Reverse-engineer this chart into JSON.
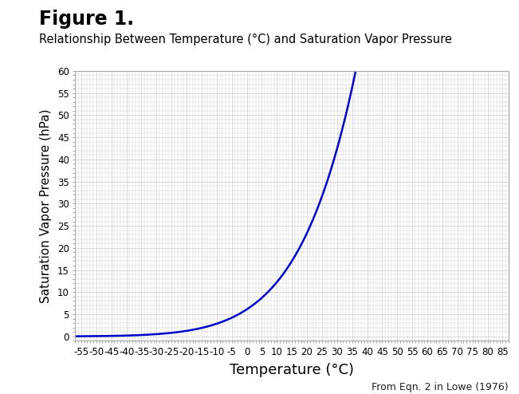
{
  "title": "Figure 1.",
  "subtitle": "Relationship Between Temperature (°C) and Saturation Vapor Pressure",
  "xlabel": "Temperature (°C)",
  "ylabel": "Saturation Vapor Pressure (hPa)",
  "footnote": "From Eqn. 2 in Lowe (1976)",
  "x_min": -57,
  "x_max": 87,
  "y_min": -1,
  "y_max": 60,
  "x_ticks": [
    -55,
    -50,
    -45,
    -40,
    -35,
    -30,
    -25,
    -20,
    -15,
    -10,
    -5,
    0,
    5,
    10,
    15,
    20,
    25,
    30,
    35,
    40,
    45,
    50,
    55,
    60,
    65,
    70,
    75,
    80,
    85
  ],
  "y_ticks": [
    0,
    5,
    10,
    15,
    20,
    25,
    30,
    35,
    40,
    45,
    50,
    55,
    60
  ],
  "line_color": "#0000CC",
  "line_width": 1.8,
  "grid_color": "#CCCCCC",
  "grid_minor_color": "#DDDDDD",
  "background_color": "#FFFFFF",
  "title_fontsize": 17,
  "subtitle_fontsize": 10.5,
  "xlabel_fontsize": 13,
  "ylabel_fontsize": 11,
  "tick_fontsize": 8.5,
  "footnote_fontsize": 9,
  "lowe_a0": 6.107799961,
  "lowe_a1": 0.4436518521,
  "lowe_a2": 0.01428945805,
  "lowe_a3": 0.0002650648471,
  "lowe_a4": 3.031240396e-06,
  "lowe_a5": 2.034080948e-08,
  "lowe_a6": 6.136820929e-11
}
